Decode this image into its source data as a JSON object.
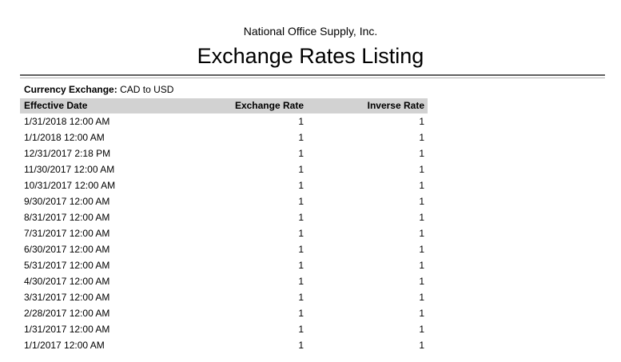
{
  "report": {
    "company": "National Office Supply, Inc.",
    "title": "Exchange Rates Listing",
    "filter_label": "Currency Exchange:",
    "filter_value": "CAD to USD"
  },
  "table": {
    "columns": [
      "Effective Date",
      "Exchange Rate",
      "Inverse Rate"
    ],
    "rows": [
      [
        "1/31/2018 12:00 AM",
        "1",
        "1"
      ],
      [
        "1/1/2018 12:00 AM",
        "1",
        "1"
      ],
      [
        "12/31/2017 2:18 PM",
        "1",
        "1"
      ],
      [
        "11/30/2017 12:00 AM",
        "1",
        "1"
      ],
      [
        "10/31/2017 12:00 AM",
        "1",
        "1"
      ],
      [
        "9/30/2017 12:00 AM",
        "1",
        "1"
      ],
      [
        "8/31/2017 12:00 AM",
        "1",
        "1"
      ],
      [
        "7/31/2017 12:00 AM",
        "1",
        "1"
      ],
      [
        "6/30/2017 12:00 AM",
        "1",
        "1"
      ],
      [
        "5/31/2017 12:00 AM",
        "1",
        "1"
      ],
      [
        "4/30/2017 12:00 AM",
        "1",
        "1"
      ],
      [
        "3/31/2017 12:00 AM",
        "1",
        "1"
      ],
      [
        "2/28/2017 12:00 AM",
        "1",
        "1"
      ],
      [
        "1/31/2017 12:00 AM",
        "1",
        "1"
      ],
      [
        "1/1/2017 12:00 AM",
        "1",
        "1"
      ]
    ]
  },
  "colors": {
    "header_bg": "#d2d2d2",
    "rule_dark": "#606060",
    "rule_light": "#b2b2b2",
    "text": "#000000"
  }
}
